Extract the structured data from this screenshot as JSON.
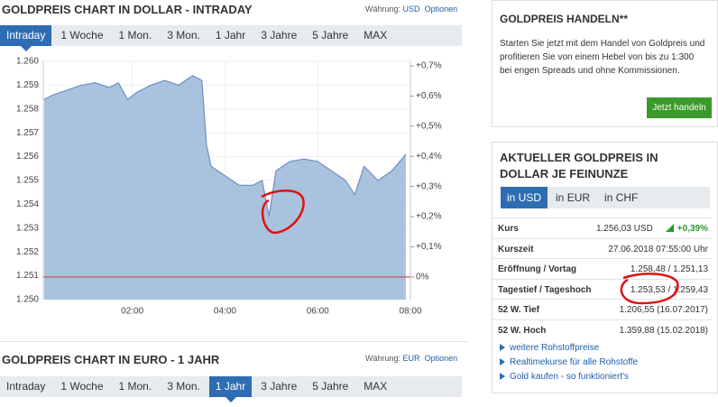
{
  "chart_data": {
    "type": "area",
    "title": "GOLDPREIS CHART IN DOLLAR - INTRADAY",
    "currency_label": "Währung:",
    "currency": "USD",
    "options": "Optionen",
    "tabs": [
      "Intraday",
      "1 Woche",
      "1 Mon.",
      "3 Mon.",
      "1 Jahr",
      "3 Jahre",
      "5 Jahre",
      "MAX"
    ],
    "active_tab": 0,
    "x": [
      0.1,
      0.3,
      0.6,
      0.9,
      1.2,
      1.5,
      1.7,
      1.9,
      2.1,
      2.4,
      2.7,
      3.0,
      3.3,
      3.5,
      3.6,
      3.7,
      4.0,
      4.3,
      4.6,
      4.8,
      4.95,
      5.1,
      5.4,
      5.7,
      6.0,
      6.3,
      6.6,
      6.8,
      7.0,
      7.3,
      7.6,
      7.9
    ],
    "series": [
      {
        "name": "Gold USD",
        "color": "#6d8fc0",
        "fill": "#a9c2de",
        "values": [
          1.2584,
          1.2586,
          1.2588,
          1.259,
          1.2591,
          1.2589,
          1.2591,
          1.2584,
          1.2587,
          1.259,
          1.2592,
          1.259,
          1.2594,
          1.2592,
          1.2565,
          1.2556,
          1.2552,
          1.2548,
          1.2548,
          1.255,
          1.2535,
          1.2554,
          1.2558,
          1.2559,
          1.2558,
          1.2554,
          1.255,
          1.2544,
          1.2556,
          1.255,
          1.2554,
          1.2561
        ]
      }
    ],
    "xlim": [
      0.08,
      8.0
    ],
    "xticks": [
      {
        "value": 2,
        "label": "02:00"
      },
      {
        "value": 4,
        "label": "04:00"
      },
      {
        "value": 6,
        "label": "06:00"
      },
      {
        "value": 8,
        "label": "08:00"
      }
    ],
    "ylim": [
      1.25,
      1.26
    ],
    "yticks": [
      {
        "value": 1.25,
        "label": "1.250"
      },
      {
        "value": 1.251,
        "label": "1.251"
      },
      {
        "value": 1.252,
        "label": "1.252"
      },
      {
        "value": 1.253,
        "label": "1.253"
      },
      {
        "value": 1.254,
        "label": "1.254"
      },
      {
        "value": 1.255,
        "label": "1.255"
      },
      {
        "value": 1.256,
        "label": "1.256"
      },
      {
        "value": 1.257,
        "label": "1.257"
      },
      {
        "value": 1.258,
        "label": "1.258"
      },
      {
        "value": 1.259,
        "label": "1.259"
      },
      {
        "value": 1.26,
        "label": "1.260"
      }
    ],
    "y2lim": [
      -0.075,
      0.715
    ],
    "y2ticks": [
      {
        "value": 0,
        "label": "0%"
      },
      {
        "value": 0.1,
        "label": "+0,1%"
      },
      {
        "value": 0.2,
        "label": "+0,2%"
      },
      {
        "value": 0.3,
        "label": "+0,3%"
      },
      {
        "value": 0.4,
        "label": "+0,4%"
      },
      {
        "value": 0.5,
        "label": "+0,5%"
      },
      {
        "value": 0.6,
        "label": "+0,6%"
      },
      {
        "value": 0.7,
        "label": "+0,7%"
      }
    ],
    "reference_line": {
      "axis": "y2",
      "value": 0,
      "color": "#c0504d"
    },
    "grid": true
  },
  "euro_chart": {
    "title": "GOLDPREIS CHART IN EURO - 1 JAHR",
    "currency_label": "Währung:",
    "currency": "EUR",
    "options": "Optionen",
    "tabs": [
      "Intraday",
      "1 Woche",
      "1 Mon.",
      "3 Mon.",
      "1 Jahr",
      "3 Jahre",
      "5 Jahre",
      "MAX"
    ],
    "active_tab": 4
  },
  "trade_box": {
    "title": "GOLDPREIS HANDELN**",
    "text": "Starten Sie jetzt mit dem Handel von Goldpreis und profitieren Sie von einem Hebel von bis zu 1:300 bei engen Spreads und ohne Kommissionen.",
    "button": "Jetzt handeln"
  },
  "price_box": {
    "title": "AKTUELLER GOLDPREIS IN DOLLAR JE FEINUNZE",
    "tabs": [
      "in USD",
      "in EUR",
      "in CHF"
    ],
    "active_tab": 0,
    "rows": [
      [
        "Kurs",
        "1.256,03 USD",
        "+0,39%"
      ],
      [
        "Kurszeit",
        "27.06.2018 07:55:00 Uhr"
      ],
      [
        "Eröffnung / Vortag",
        "1.258,48 / 1.251,13"
      ],
      [
        "Tagestief / Tageshoch",
        "1.253,53 / 1.259,43"
      ],
      [
        "52 W. Tief",
        "1.206,55 (16.07.2017)"
      ],
      [
        "52 W. Hoch",
        "1.359,88 (15.02.2018)"
      ]
    ],
    "links": [
      "weitere Rohstoffpreise",
      "Realtimekurse für alle Rohstoffe",
      "Gold kaufen - so funktioniert's"
    ]
  }
}
